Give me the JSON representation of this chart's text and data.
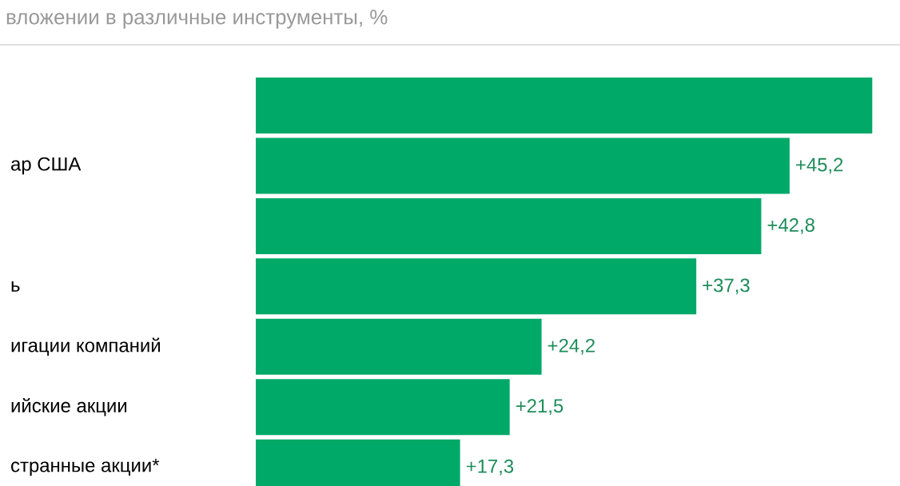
{
  "chart_data": {
    "type": "bar",
    "orientation": "horizontal",
    "title": "вложении в различные инструменты, %",
    "categories": [
      null,
      "ар США",
      null,
      "ь",
      "игации компаний",
      "ийские акции",
      "странные акции*"
    ],
    "values": [
      52.2,
      45.2,
      42.8,
      37.3,
      24.2,
      21.5,
      17.3
    ],
    "value_labels": [
      null,
      "+45,2",
      "+42,8",
      "+37,3",
      "+24,2",
      "+21,5",
      "+17,3"
    ],
    "color": "#00a968"
  }
}
